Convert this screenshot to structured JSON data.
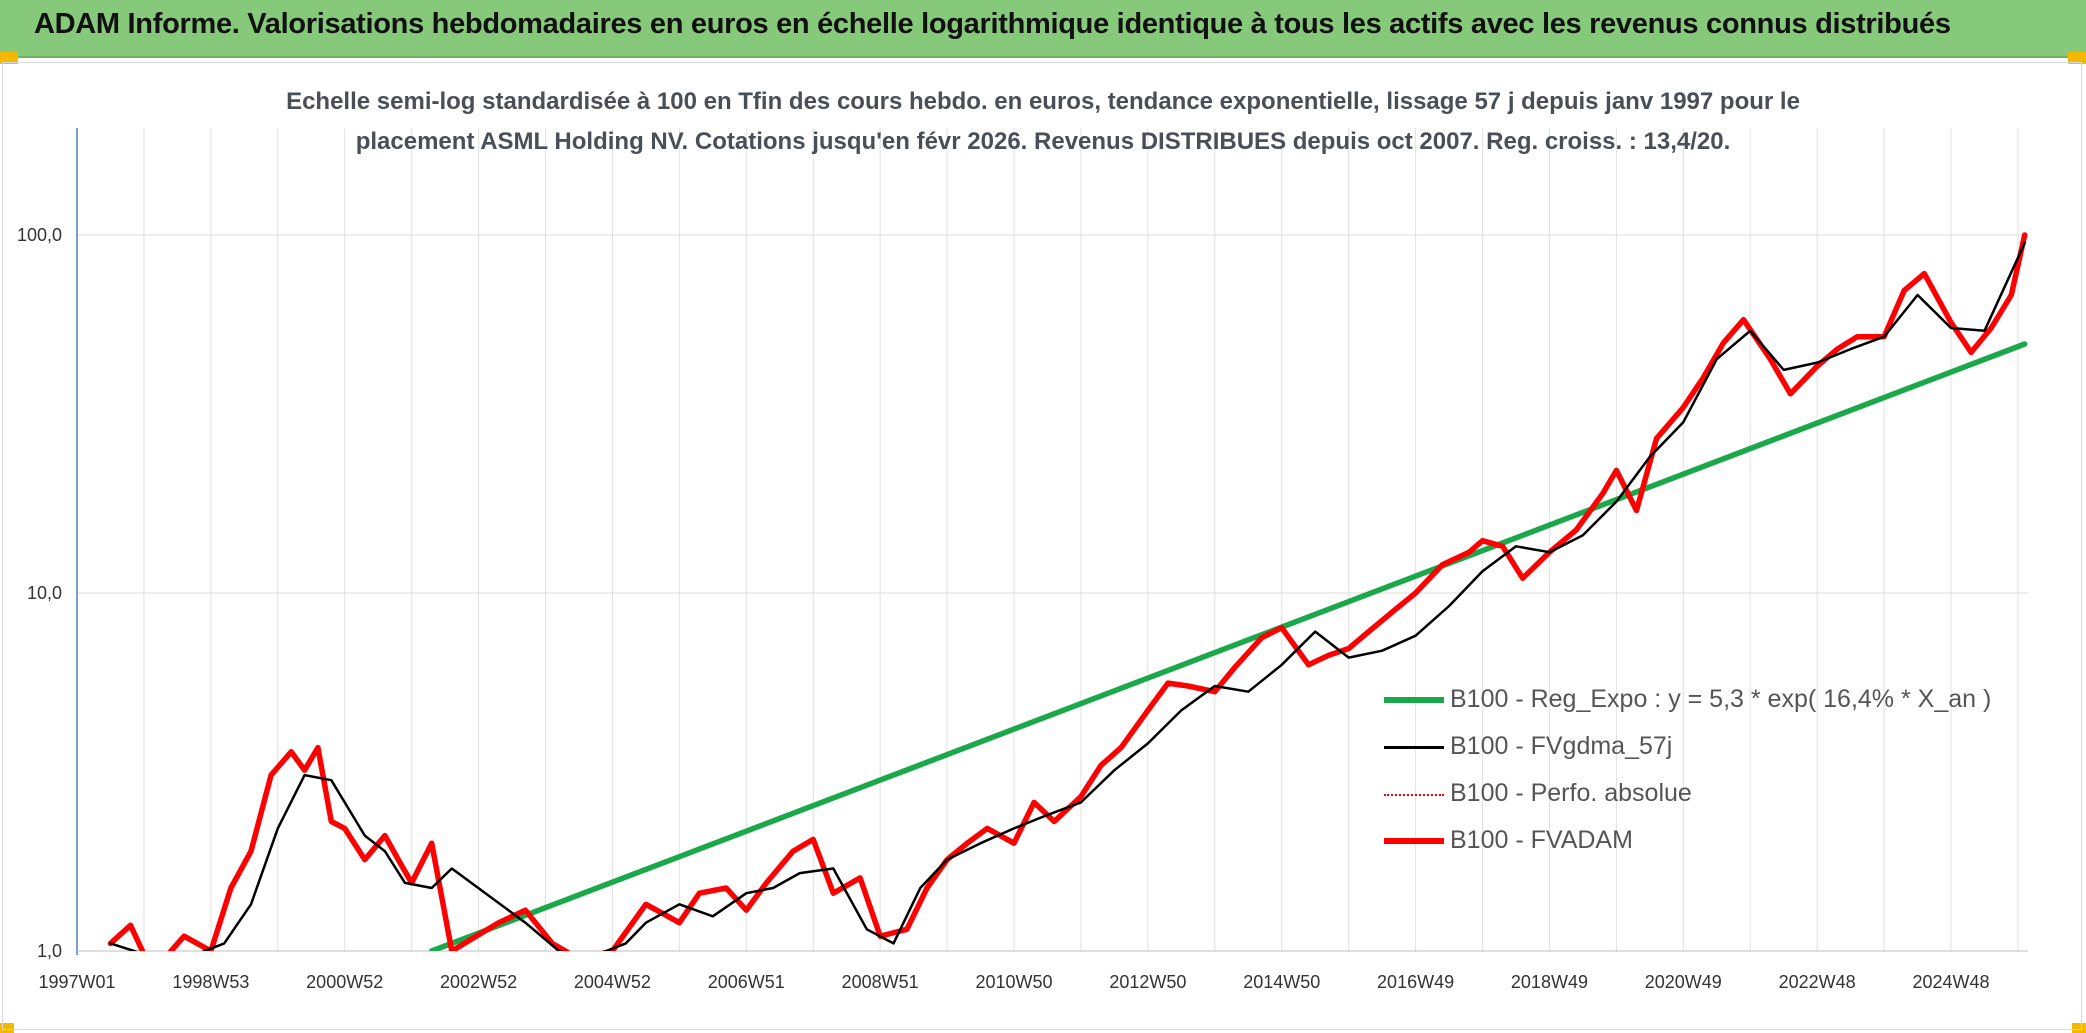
{
  "banner": {
    "title": "ADAM Informe. Valorisations hebdomadaires en euros en échelle logarithmique identique à tous les actifs avec les revenus connus distribués"
  },
  "chart_data": {
    "type": "line",
    "title_line1": "Echelle semi-log standardisée à 100 en Tfin des cours hebdo. en euros, tendance exponentielle, lissage 57 j depuis janv 1997 pour le",
    "title_line2": "placement ASML Holding NV. Cotations jusqu'en févr 2026. Revenus DISTRIBUES depuis oct 2007. Reg. croiss. : 13,4/20.",
    "y_scale": "log",
    "ylim": [
      1,
      100
    ],
    "y_ticks": [
      {
        "value": 1,
        "label": "1,0"
      },
      {
        "value": 10,
        "label": "10,0"
      },
      {
        "value": 100,
        "label": "100,0"
      }
    ],
    "x_unit": "years",
    "xlim": [
      1997.0,
      2026.15
    ],
    "x_ticks": [
      {
        "x": 1997.0,
        "label": "1997W01"
      },
      {
        "x": 1999.0,
        "label": "1998W53"
      },
      {
        "x": 2001.0,
        "label": "2000W52"
      },
      {
        "x": 2003.0,
        "label": "2002W52"
      },
      {
        "x": 2005.0,
        "label": "2004W52"
      },
      {
        "x": 2007.0,
        "label": "2006W51"
      },
      {
        "x": 2009.0,
        "label": "2008W51"
      },
      {
        "x": 2011.0,
        "label": "2010W50"
      },
      {
        "x": 2013.0,
        "label": "2012W50"
      },
      {
        "x": 2015.0,
        "label": "2014W50"
      },
      {
        "x": 2017.0,
        "label": "2016W49"
      },
      {
        "x": 2019.0,
        "label": "2018W49"
      },
      {
        "x": 2021.0,
        "label": "2020W49"
      },
      {
        "x": 2023.0,
        "label": "2022W48"
      },
      {
        "x": 2025.0,
        "label": "2024W48"
      }
    ],
    "grid": "vertical and horizontal",
    "legend_position": "right-center",
    "series": [
      {
        "name": "B100 - Reg_Expo : y = 5,3 * exp( 16,4% *  X_an )",
        "color": "#1aa84a",
        "style": "solid-thick",
        "x": [
          2002.3,
          2026.1
        ],
        "y": [
          1.0,
          49.6
        ]
      },
      {
        "name": "B100 - FVgdma_57j",
        "color": "#000000",
        "style": "solid-thin",
        "x": [
          1997.5,
          1998.0,
          1998.6,
          1999.2,
          1999.6,
          2000.0,
          2000.4,
          2000.8,
          2001.3,
          2001.6,
          2001.9,
          2002.3,
          2002.6,
          2003.7,
          2004.2,
          2004.6,
          2005.2,
          2005.5,
          2006.0,
          2006.5,
          2007.0,
          2007.4,
          2007.8,
          2008.3,
          2008.8,
          2009.2,
          2009.6,
          2010.0,
          2010.5,
          2011.0,
          2011.5,
          2012.0,
          2012.5,
          2013.0,
          2013.5,
          2014.0,
          2014.5,
          2015.0,
          2015.5,
          2016.0,
          2016.5,
          2017.0,
          2017.5,
          2018.0,
          2018.5,
          2019.0,
          2019.5,
          2020.0,
          2020.5,
          2021.0,
          2021.5,
          2022.0,
          2022.5,
          2023.0,
          2023.5,
          2024.0,
          2024.5,
          2025.0,
          2025.5,
          2026.1
        ],
        "y": [
          1.05,
          0.98,
          0.95,
          1.05,
          1.35,
          2.2,
          3.1,
          3.0,
          2.1,
          1.9,
          1.55,
          1.5,
          1.7,
          1.2,
          1.0,
          0.95,
          1.05,
          1.2,
          1.35,
          1.25,
          1.45,
          1.5,
          1.65,
          1.7,
          1.15,
          1.05,
          1.5,
          1.8,
          2.0,
          2.2,
          2.4,
          2.6,
          3.2,
          3.8,
          4.7,
          5.5,
          5.3,
          6.3,
          7.8,
          6.6,
          6.9,
          7.6,
          9.2,
          11.5,
          13.5,
          13.0,
          14.5,
          18.0,
          24.0,
          30.0,
          45.0,
          54.0,
          42.0,
          44.0,
          48.0,
          52.0,
          68.0,
          55.0,
          54.0,
          95.0
        ]
      },
      {
        "name": "B100 - Perfo. absolue",
        "color": "#ff0000",
        "style": "dotted",
        "x": [],
        "y": []
      },
      {
        "name": "B100 - FVADAM",
        "color": "#ff0000",
        "style": "solid-thick",
        "x": [
          1997.5,
          1997.8,
          1998.0,
          1998.3,
          1998.6,
          1999.0,
          1999.3,
          1999.6,
          1999.9,
          2000.2,
          2000.4,
          2000.6,
          2000.8,
          2001.0,
          2001.3,
          2001.6,
          2001.8,
          2002.0,
          2002.3,
          2002.6,
          2003.3,
          2003.7,
          2004.1,
          2004.5,
          2005.0,
          2005.5,
          2006.0,
          2006.3,
          2006.7,
          2007.0,
          2007.3,
          2007.7,
          2008.0,
          2008.3,
          2008.7,
          2009.0,
          2009.4,
          2009.7,
          2010.0,
          2010.3,
          2010.6,
          2011.0,
          2011.3,
          2011.6,
          2012.0,
          2012.3,
          2012.6,
          2013.0,
          2013.3,
          2013.6,
          2014.0,
          2014.3,
          2014.7,
          2015.0,
          2015.4,
          2015.7,
          2016.0,
          2016.3,
          2016.7,
          2017.0,
          2017.4,
          2017.8,
          2018.0,
          2018.3,
          2018.6,
          2019.0,
          2019.4,
          2019.8,
          2020.0,
          2020.3,
          2020.6,
          2021.0,
          2021.3,
          2021.6,
          2021.9,
          2022.3,
          2022.6,
          2023.0,
          2023.3,
          2023.6,
          2024.0,
          2024.3,
          2024.6,
          2025.0,
          2025.3,
          2025.6,
          2025.9,
          2026.1
        ],
        "y": [
          1.05,
          1.18,
          0.98,
          0.95,
          1.1,
          1.0,
          1.5,
          1.9,
          3.1,
          3.6,
          3.2,
          3.7,
          2.3,
          2.2,
          1.8,
          2.1,
          1.8,
          1.55,
          2.0,
          1.0,
          1.2,
          1.3,
          1.05,
          0.95,
          1.0,
          1.35,
          1.2,
          1.45,
          1.5,
          1.3,
          1.55,
          1.9,
          2.05,
          1.45,
          1.6,
          1.1,
          1.15,
          1.5,
          1.8,
          2.0,
          2.2,
          2.0,
          2.6,
          2.3,
          2.7,
          3.3,
          3.7,
          4.7,
          5.6,
          5.5,
          5.3,
          6.2,
          7.5,
          8.0,
          6.3,
          6.7,
          7.0,
          7.8,
          9.0,
          10.0,
          12.0,
          13.0,
          14.0,
          13.5,
          11.0,
          13.0,
          15.0,
          19.0,
          22.0,
          17.0,
          27.0,
          33.0,
          40.0,
          50.0,
          58.0,
          45.0,
          36.0,
          43.0,
          48.0,
          52.0,
          52.0,
          70.0,
          78.0,
          57.0,
          47.0,
          55.0,
          68.0,
          100.0
        ]
      }
    ]
  }
}
